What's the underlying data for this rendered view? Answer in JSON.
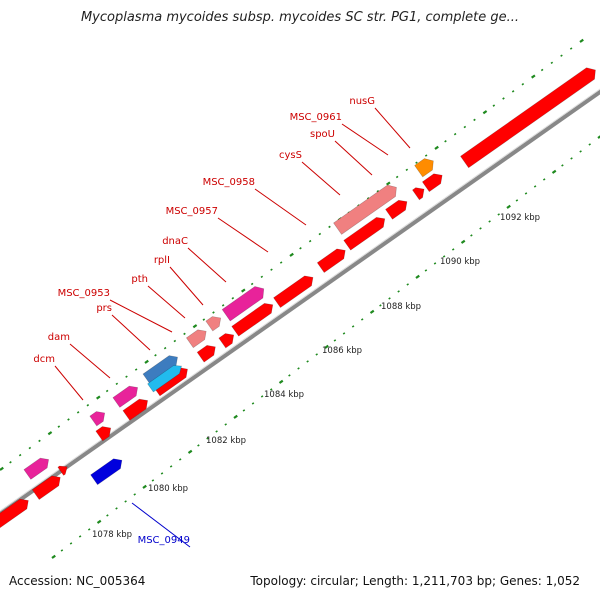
{
  "title": "Mycoplasma mycoides subsp. mycoides SC str. PG1, complete ge...",
  "footer": {
    "accession": "Accession: NC_005364",
    "topology": "Topology: circular; Length: 1,211,703 bp; Genes: 1,052"
  },
  "colors": {
    "forward_gene": "#ff0000",
    "magenta": "#e8239a",
    "pink": "#f08080",
    "steel_blue": "#3d7cbf",
    "cyan": "#22bbee",
    "orange": "#ff8c00",
    "blue": "#0000dd",
    "tick": "#1f8a1f",
    "label_red": "#cc0000",
    "label_blue": "#0000cc"
  },
  "scale": {
    "unit": "kbp",
    "tick_labels": [
      "1078 kbp",
      "1080 kbp",
      "1082 kbp",
      "1084 kbp",
      "1086 kbp",
      "1088 kbp",
      "1090 kbp",
      "1092 kbp"
    ]
  },
  "gene_labels": [
    {
      "name": "dcm",
      "color": "red"
    },
    {
      "name": "dam",
      "color": "red"
    },
    {
      "name": "prs",
      "color": "red"
    },
    {
      "name": "MSC_0953",
      "color": "red"
    },
    {
      "name": "pth",
      "color": "red"
    },
    {
      "name": "rplI",
      "color": "red"
    },
    {
      "name": "dnaC",
      "color": "red"
    },
    {
      "name": "MSC_0957",
      "color": "red"
    },
    {
      "name": "MSC_0958",
      "color": "red"
    },
    {
      "name": "cysS",
      "color": "red"
    },
    {
      "name": "spoU",
      "color": "red"
    },
    {
      "name": "MSC_0961",
      "color": "red"
    },
    {
      "name": "nusG",
      "color": "red"
    },
    {
      "name": "MSC_0949",
      "color": "blue"
    }
  ]
}
